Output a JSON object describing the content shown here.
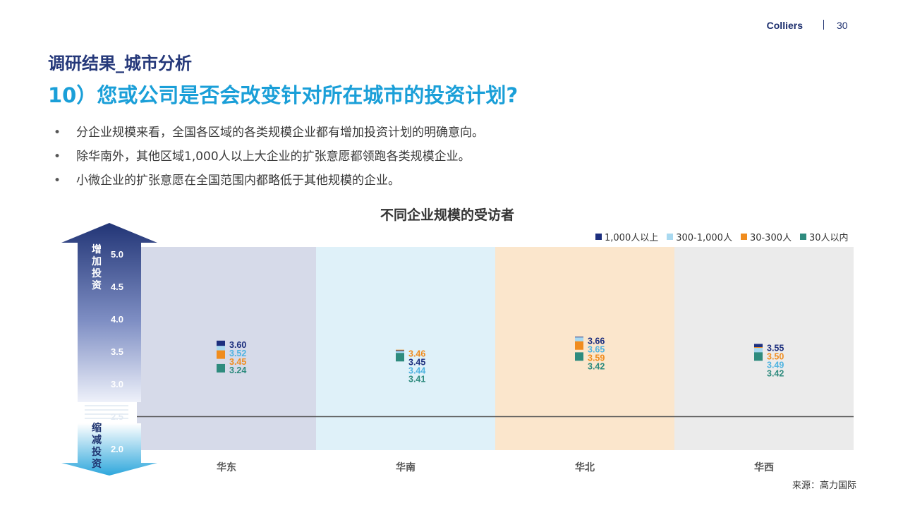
{
  "header": {
    "brand": "Colliers",
    "page_number": "30"
  },
  "section_title": "调研结果_城市分析",
  "question_title": "10）您或公司是否会改变针对所在城市的投资计划?",
  "bullets": [
    "分企业规模来看，全国各区域的各类规模企业都有增加投资计划的明确意向。",
    "除华南外，其他区域1,000人以上大企业的扩张意愿都领跑各类规模企业。",
    "小微企业的扩张意愿在全国范围内都略低于其他规模的企业。"
  ],
  "side_labels": {
    "increase": "增加投资",
    "decrease": "缩减投资"
  },
  "source": "来源：高力国际",
  "colors": {
    "series_1000_plus": "#1d2f7e",
    "series_300_1000": "#a9d9f0",
    "series_30_300": "#f08c1e",
    "series_under_30": "#2e8b7e",
    "region_bg": [
      "#d6dae9",
      "#dff1f9",
      "#fbe6cc",
      "#ebebeb"
    ],
    "baseline": "#555555"
  },
  "chart_data": {
    "type": "scatter",
    "title": "不同企业规模的受访者",
    "categories": [
      "华东",
      "华南",
      "华北",
      "华西"
    ],
    "y_ticks": [
      "2.0",
      "2.5",
      "3.0",
      "3.5",
      "4.0",
      "4.5",
      "5.0"
    ],
    "ylim": [
      2.0,
      5.0
    ],
    "axis_break": true,
    "baseline_value": 2.5,
    "legend_position": "top-right",
    "series": [
      {
        "name": "1,000人以上",
        "values": [
          3.6,
          3.45,
          3.66,
          3.55
        ],
        "labels": [
          "3.60",
          "3.45",
          "3.66",
          "3.55"
        ]
      },
      {
        "name": "300-1,000人",
        "values": [
          3.52,
          3.44,
          3.65,
          3.49
        ],
        "labels": [
          "3.52",
          "3.44",
          "3.65",
          "3.49"
        ]
      },
      {
        "name": "30-300人",
        "values": [
          3.45,
          3.46,
          3.59,
          3.5
        ],
        "labels": [
          "3.45",
          "3.46",
          "3.59",
          "3.50"
        ]
      },
      {
        "name": "30人以内",
        "values": [
          3.24,
          3.41,
          3.42,
          3.42
        ],
        "labels": [
          "3.24",
          "3.41",
          "3.42",
          "3.42"
        ]
      }
    ]
  }
}
